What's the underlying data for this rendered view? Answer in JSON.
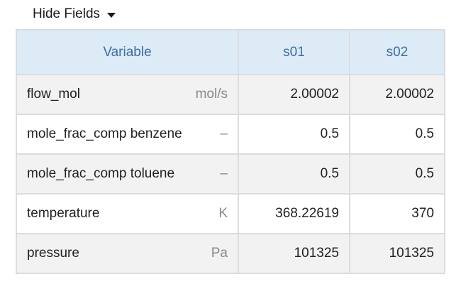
{
  "toolbar": {
    "hide_fields_label": "Hide Fields"
  },
  "table": {
    "headers": [
      "Variable",
      "s01",
      "s02"
    ],
    "rows": [
      {
        "name": "flow_mol",
        "unit": "mol/s",
        "s01": "2.00002",
        "s02": "2.00002"
      },
      {
        "name": "mole_frac_comp benzene",
        "unit": "–",
        "s01": "0.5",
        "s02": "0.5"
      },
      {
        "name": "mole_frac_comp toluene",
        "unit": "–",
        "s01": "0.5",
        "s02": "0.5"
      },
      {
        "name": "temperature",
        "unit": "K",
        "s01": "368.22619",
        "s02": "370"
      },
      {
        "name": "pressure",
        "unit": "Pa",
        "s01": "101325",
        "s02": "101325"
      }
    ]
  },
  "colors": {
    "header_bg": "#ddebf7",
    "header_text": "#3a6ea5",
    "row_shade": "#f2f2f2",
    "border": "#dcdcdc",
    "unit_text": "#8a8a8a"
  },
  "icons": {
    "dropdown": "caret-down-icon"
  }
}
